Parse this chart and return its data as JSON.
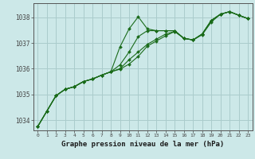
{
  "title": "Graphe pression niveau de la mer (hPa)",
  "background_color": "#cce8e8",
  "grid_color": "#aacccc",
  "line_color": "#1a6b1a",
  "xlim": [
    -0.5,
    23.5
  ],
  "ylim": [
    1033.6,
    1038.55
  ],
  "yticks": [
    1034,
    1035,
    1036,
    1037,
    1038
  ],
  "xticks": [
    0,
    1,
    2,
    3,
    4,
    5,
    6,
    7,
    8,
    9,
    10,
    11,
    12,
    13,
    14,
    15,
    16,
    17,
    18,
    19,
    20,
    21,
    22,
    23
  ],
  "series": [
    {
      "x": [
        0,
        1,
        2,
        3,
        4,
        5,
        6,
        7,
        8,
        9,
        10,
        11,
        12,
        13,
        14,
        15,
        16,
        17,
        18,
        19,
        20,
        21,
        22,
        23
      ],
      "y": [
        1033.75,
        1034.35,
        1034.95,
        1035.2,
        1035.3,
        1035.5,
        1035.6,
        1035.75,
        1035.88,
        1036.85,
        1037.55,
        1038.02,
        1037.55,
        1037.48,
        1037.48,
        1037.48,
        1037.18,
        1037.12,
        1037.35,
        1037.88,
        1038.12,
        1038.22,
        1038.08,
        1037.95
      ]
    },
    {
      "x": [
        0,
        1,
        2,
        3,
        4,
        5,
        6,
        7,
        8,
        9,
        10,
        11,
        12,
        13,
        14,
        15,
        16,
        17,
        18,
        19,
        20,
        21,
        22,
        23
      ],
      "y": [
        1033.75,
        1034.35,
        1034.95,
        1035.2,
        1035.3,
        1035.5,
        1035.6,
        1035.75,
        1035.88,
        1036.15,
        1036.65,
        1037.25,
        1037.48,
        1037.48,
        1037.48,
        1037.48,
        1037.18,
        1037.12,
        1037.35,
        1037.88,
        1038.12,
        1038.22,
        1038.08,
        1037.95
      ]
    },
    {
      "x": [
        0,
        1,
        2,
        3,
        4,
        5,
        6,
        7,
        8,
        9,
        10,
        11,
        12,
        13,
        14,
        15,
        16,
        17,
        18,
        19,
        20,
        21,
        22,
        23
      ],
      "y": [
        1033.75,
        1034.35,
        1034.95,
        1035.2,
        1035.3,
        1035.5,
        1035.6,
        1035.75,
        1035.88,
        1036.0,
        1036.35,
        1036.65,
        1036.95,
        1037.15,
        1037.35,
        1037.45,
        1037.18,
        1037.12,
        1037.35,
        1037.88,
        1038.12,
        1038.22,
        1038.08,
        1037.95
      ]
    },
    {
      "x": [
        0,
        1,
        2,
        3,
        4,
        5,
        6,
        7,
        8,
        9,
        10,
        11,
        12,
        13,
        14,
        15,
        16,
        17,
        18,
        19,
        20,
        21,
        22,
        23
      ],
      "y": [
        1033.75,
        1034.35,
        1034.95,
        1035.2,
        1035.3,
        1035.5,
        1035.6,
        1035.75,
        1035.88,
        1035.98,
        1036.18,
        1036.48,
        1036.88,
        1037.08,
        1037.28,
        1037.45,
        1037.18,
        1037.12,
        1037.32,
        1037.82,
        1038.12,
        1038.22,
        1038.08,
        1037.95
      ]
    }
  ]
}
